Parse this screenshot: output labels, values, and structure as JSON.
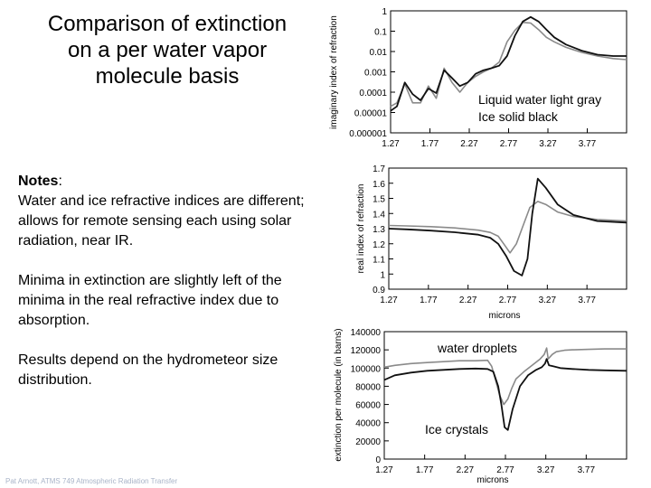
{
  "slide": {
    "title": "Comparison of extinction on a per water vapor molecule basis",
    "notes_heading": "Notes",
    "notes_colon": ":",
    "notes_p1": "Water and ice refractive indices are different; allows for remote sensing each using solar radiation, near IR.",
    "notes_p2": "Minima in extinction are slightly left of the minima in the real refractive index due to absorption.",
    "notes_p3": "Results depend on the hydrometeor size distribution.",
    "footer": "Pat Arnott, ATMS 749 Atmospheric Radiation Transfer"
  },
  "colors": {
    "liquid": "#8a8a8a",
    "ice": "#111111"
  },
  "chart_data": [
    {
      "id": "imag",
      "type": "line",
      "ylabel": "imaginary index of refraction",
      "xlabel": "",
      "yscale": "log",
      "ylim": [
        1e-06,
        1
      ],
      "xlim": [
        1.27,
        4.27
      ],
      "xticks": [
        1.27,
        1.77,
        2.27,
        2.77,
        3.27,
        3.77
      ],
      "xtick_labels": [
        "1.27",
        "1.77",
        "2.27",
        "2.77",
        "3.27",
        "3.77"
      ],
      "yticks": [
        1,
        0.1,
        0.01,
        0.001,
        0.0001,
        1e-05,
        1e-06
      ],
      "ytick_labels": [
        "1",
        "0.1",
        "0.01",
        "0.001",
        "0.0001",
        "0.00001",
        "0.000001"
      ],
      "annotations": [
        "Liquid water light gray",
        "Ice solid black"
      ],
      "series": [
        {
          "name": "Liquid water",
          "color_key": "liquid",
          "x": [
            1.27,
            1.35,
            1.45,
            1.55,
            1.65,
            1.75,
            1.85,
            1.95,
            2.05,
            2.15,
            2.25,
            2.35,
            2.45,
            2.55,
            2.65,
            2.75,
            2.85,
            2.95,
            3.05,
            3.15,
            3.25,
            3.35,
            3.5,
            3.7,
            3.9,
            4.1,
            4.27
          ],
          "y": [
            2e-05,
            3e-05,
            0.00025,
            3e-05,
            3e-05,
            0.0002,
            5e-05,
            0.0015,
            0.0003,
            0.0001,
            0.0003,
            0.0006,
            0.001,
            0.0015,
            0.003,
            0.03,
            0.11,
            0.27,
            0.25,
            0.12,
            0.05,
            0.03,
            0.016,
            0.009,
            0.006,
            0.0045,
            0.004
          ]
        },
        {
          "name": "Ice",
          "color_key": "ice",
          "x": [
            1.27,
            1.35,
            1.45,
            1.55,
            1.65,
            1.75,
            1.85,
            1.95,
            2.05,
            2.15,
            2.25,
            2.35,
            2.45,
            2.55,
            2.65,
            2.75,
            2.85,
            2.95,
            3.05,
            3.15,
            3.25,
            3.35,
            3.5,
            3.7,
            3.9,
            4.1,
            4.27
          ],
          "y": [
            1.2e-05,
            2e-05,
            0.0003,
            8e-05,
            4e-05,
            0.00015,
            9e-05,
            0.0012,
            0.0005,
            0.0002,
            0.0003,
            0.0008,
            0.0012,
            0.0015,
            0.002,
            0.006,
            0.06,
            0.3,
            0.5,
            0.3,
            0.12,
            0.05,
            0.022,
            0.011,
            0.007,
            0.006,
            0.006
          ]
        }
      ]
    },
    {
      "id": "real",
      "type": "line",
      "ylabel": "real index of refraction",
      "xlabel": "microns",
      "ylim": [
        0.9,
        1.7
      ],
      "xlim": [
        1.27,
        4.27
      ],
      "xticks": [
        1.27,
        1.77,
        2.27,
        2.77,
        3.27,
        3.77
      ],
      "xtick_labels": [
        "1.27",
        "1.77",
        "2.27",
        "2.77",
        "3.27",
        "3.77"
      ],
      "yticks": [
        0.9,
        1,
        1.1,
        1.2,
        1.3,
        1.4,
        1.5,
        1.6,
        1.7
      ],
      "ytick_labels": [
        "0.9",
        "1",
        "1.1",
        "1.2",
        "1.3",
        "1.4",
        "1.5",
        "1.6",
        "1.7"
      ],
      "series": [
        {
          "name": "Liquid water",
          "color_key": "liquid",
          "x": [
            1.27,
            1.5,
            1.8,
            2.1,
            2.4,
            2.55,
            2.65,
            2.72,
            2.8,
            2.88,
            2.95,
            3.05,
            3.15,
            3.25,
            3.4,
            3.6,
            3.9,
            4.27
          ],
          "y": [
            1.321,
            1.318,
            1.313,
            1.305,
            1.29,
            1.275,
            1.25,
            1.2,
            1.14,
            1.2,
            1.3,
            1.44,
            1.48,
            1.46,
            1.41,
            1.38,
            1.36,
            1.35
          ]
        },
        {
          "name": "Ice",
          "color_key": "ice",
          "x": [
            1.27,
            1.5,
            1.8,
            2.1,
            2.4,
            2.55,
            2.65,
            2.75,
            2.85,
            2.95,
            3.02,
            3.08,
            3.15,
            3.25,
            3.4,
            3.6,
            3.9,
            4.27
          ],
          "y": [
            1.3,
            1.295,
            1.287,
            1.276,
            1.26,
            1.24,
            1.2,
            1.12,
            1.02,
            0.99,
            1.1,
            1.4,
            1.63,
            1.57,
            1.46,
            1.39,
            1.35,
            1.34
          ]
        }
      ]
    },
    {
      "id": "ext",
      "type": "line",
      "ylabel": "extinction per molecule (in barns)",
      "xlabel": "microns",
      "ylim": [
        0,
        140000
      ],
      "xlim": [
        1.27,
        4.27
      ],
      "xticks": [
        1.27,
        1.77,
        2.27,
        2.77,
        3.27,
        3.77
      ],
      "xtick_labels": [
        "1.27",
        "1.77",
        "2.27",
        "2.77",
        "3.27",
        "3.77"
      ],
      "yticks": [
        0,
        20000,
        40000,
        60000,
        80000,
        100000,
        120000,
        140000
      ],
      "ytick_labels": [
        "0",
        "20000",
        "40000",
        "60000",
        "80000",
        "100000",
        "120000",
        "140000"
      ],
      "annotations": [
        "water droplets",
        "Ice crystals"
      ],
      "series": [
        {
          "name": "water droplets",
          "color_key": "liquid",
          "x": [
            1.27,
            1.4,
            1.6,
            1.8,
            2.0,
            2.2,
            2.4,
            2.55,
            2.6,
            2.65,
            2.7,
            2.75,
            2.8,
            2.85,
            2.9,
            3.0,
            3.1,
            3.2,
            3.25,
            3.28,
            3.3,
            3.35,
            3.4,
            3.5,
            3.6,
            3.8,
            4.0,
            4.27
          ],
          "y": [
            101000,
            103000,
            105000,
            106000,
            107000,
            108000,
            108000,
            108500,
            102000,
            86000,
            70000,
            60000,
            66000,
            78000,
            88000,
            96000,
            103000,
            110000,
            115000,
            122000,
            110000,
            115000,
            118000,
            119500,
            120000,
            120500,
            121000,
            121000
          ]
        },
        {
          "name": "Ice crystals",
          "color_key": "ice",
          "x": [
            1.27,
            1.4,
            1.6,
            1.8,
            2.0,
            2.2,
            2.4,
            2.55,
            2.62,
            2.68,
            2.72,
            2.76,
            2.8,
            2.86,
            2.95,
            3.05,
            3.15,
            3.22,
            3.26,
            3.28,
            3.31,
            3.36,
            3.45,
            3.6,
            3.8,
            4.0,
            4.27
          ],
          "y": [
            87000,
            92000,
            95000,
            97000,
            98000,
            99000,
            99500,
            99000,
            96000,
            80000,
            60000,
            35000,
            32000,
            55000,
            80000,
            92000,
            98000,
            101000,
            105000,
            110000,
            103000,
            102000,
            100000,
            99000,
            98000,
            97500,
            97000
          ]
        }
      ]
    }
  ]
}
